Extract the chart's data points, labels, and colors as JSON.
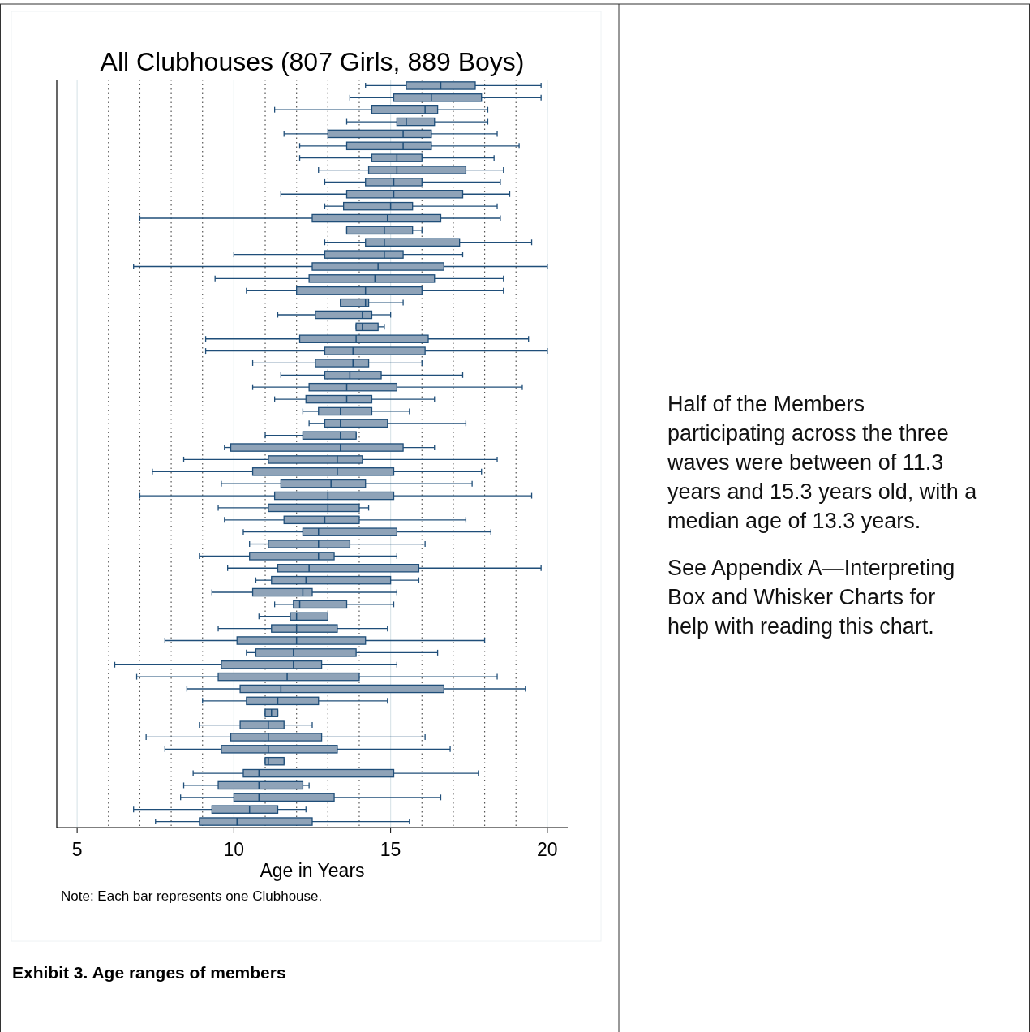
{
  "chart_data": {
    "type": "box",
    "orientation": "horizontal",
    "title": "All Clubhouses (807 Girls, 889 Boys)",
    "xlabel": "Age in Years",
    "annotations": [
      "Note: Each bar represents one Clubhouse.",
      "Exhibit 3. Age ranges of members",
      "Half of the Members participating across the three waves were between of 11.3 years and 15.3 years old, with a median age of 13.3 years.",
      "See Appendix A—Interpreting Box and Whisker Charts for help with reading this chart."
    ],
    "categories": [
      null,
      null,
      null,
      null,
      null,
      null,
      null,
      null,
      null,
      null,
      null,
      null,
      null,
      null,
      null,
      null,
      null,
      null,
      null,
      null,
      null,
      null,
      null,
      null,
      null,
      null,
      null,
      null,
      null,
      null,
      null,
      null,
      null,
      null,
      null,
      null,
      null,
      null,
      null,
      null,
      null,
      null,
      null,
      null,
      null,
      null,
      null,
      null,
      null,
      null,
      null,
      null,
      null,
      null,
      null,
      null,
      null,
      null,
      null,
      null,
      null,
      null
    ],
    "color": "#8fa3b8",
    "xlim": [
      4.35,
      20.65
    ],
    "xticks": [
      5,
      {
        "value": 6,
        "label": null
      },
      {
        "value": 7,
        "label": null
      },
      {
        "value": 8,
        "label": null
      },
      {
        "value": 9,
        "label": null
      },
      10,
      {
        "value": 11,
        "label": null
      },
      {
        "value": 12,
        "label": null
      },
      {
        "value": 13,
        "label": null
      },
      {
        "value": 14,
        "label": null
      },
      15,
      {
        "value": 16,
        "label": null
      },
      {
        "value": 17,
        "label": null
      },
      {
        "value": 18,
        "label": null
      },
      {
        "value": 19,
        "label": null
      },
      20
    ],
    "grid": "x",
    "boxes": [
      {
        "low": 14.2,
        "q1": 15.5,
        "median": 16.6,
        "q3": 17.7,
        "high": 19.8
      },
      {
        "low": 13.7,
        "q1": 15.1,
        "median": 16.3,
        "q3": 17.9,
        "high": 19.8
      },
      {
        "low": 11.3,
        "q1": 14.4,
        "median": 16.1,
        "q3": 16.5,
        "high": 18.1
      },
      {
        "low": 13.6,
        "q1": 15.2,
        "median": 15.5,
        "q3": 16.4,
        "high": 18.1
      },
      {
        "low": 11.6,
        "q1": 13.0,
        "median": 15.4,
        "q3": 16.3,
        "high": 18.4
      },
      {
        "low": 12.1,
        "q1": 13.6,
        "median": 15.4,
        "q3": 16.3,
        "high": 19.1
      },
      {
        "low": 12.1,
        "q1": 14.4,
        "median": 15.2,
        "q3": 16.0,
        "high": 18.3
      },
      {
        "low": 12.7,
        "q1": 14.3,
        "median": 15.2,
        "q3": 17.4,
        "high": 18.6
      },
      {
        "low": 12.9,
        "q1": 14.2,
        "median": 15.1,
        "q3": 16.0,
        "high": 18.5
      },
      {
        "low": 11.5,
        "q1": 13.6,
        "median": 15.1,
        "q3": 17.3,
        "high": 18.8
      },
      {
        "low": 12.9,
        "q1": 13.5,
        "median": 15.0,
        "q3": 15.7,
        "high": 18.4
      },
      {
        "low": 7.0,
        "q1": 12.5,
        "median": 14.9,
        "q3": 16.6,
        "high": 18.5
      },
      {
        "low": 13.6,
        "q1": 13.6,
        "median": 14.8,
        "q3": 15.7,
        "high": 16.0
      },
      {
        "low": 12.9,
        "q1": 14.2,
        "median": 14.8,
        "q3": 17.2,
        "high": 19.5
      },
      {
        "low": 10.0,
        "q1": 12.9,
        "median": 14.8,
        "q3": 15.4,
        "high": 17.3
      },
      {
        "low": 6.8,
        "q1": 12.5,
        "median": 14.6,
        "q3": 16.7,
        "high": 20.0
      },
      {
        "low": 9.4,
        "q1": 12.4,
        "median": 14.5,
        "q3": 16.4,
        "high": 18.6
      },
      {
        "low": 10.4,
        "q1": 12.0,
        "median": 14.2,
        "q3": 16.0,
        "high": 18.6
      },
      {
        "low": 13.4,
        "q1": 13.4,
        "median": 14.2,
        "q3": 14.3,
        "high": 15.4
      },
      {
        "low": 11.4,
        "q1": 12.6,
        "median": 14.1,
        "q3": 14.4,
        "high": 15.0
      },
      {
        "low": 13.9,
        "q1": 13.9,
        "median": 14.1,
        "q3": 14.6,
        "high": 14.8
      },
      {
        "low": 9.1,
        "q1": 12.1,
        "median": 13.9,
        "q3": 16.2,
        "high": 19.4
      },
      {
        "low": 9.1,
        "q1": 12.9,
        "median": 13.8,
        "q3": 16.1,
        "high": 20.0
      },
      {
        "low": 10.6,
        "q1": 12.6,
        "median": 13.8,
        "q3": 14.3,
        "high": 16.0
      },
      {
        "low": 11.5,
        "q1": 12.9,
        "median": 13.7,
        "q3": 14.7,
        "high": 17.3
      },
      {
        "low": 10.6,
        "q1": 12.4,
        "median": 13.6,
        "q3": 15.2,
        "high": 19.2
      },
      {
        "low": 11.3,
        "q1": 12.3,
        "median": 13.6,
        "q3": 14.4,
        "high": 16.4
      },
      {
        "low": 12.2,
        "q1": 12.7,
        "median": 13.4,
        "q3": 14.4,
        "high": 15.6
      },
      {
        "low": 12.4,
        "q1": 12.9,
        "median": 13.4,
        "q3": 14.9,
        "high": 17.4
      },
      {
        "low": 11.0,
        "q1": 12.2,
        "median": 13.4,
        "q3": 13.9,
        "high": 13.9
      },
      {
        "low": 9.7,
        "q1": 9.9,
        "median": 13.4,
        "q3": 15.4,
        "high": 16.4
      },
      {
        "low": 8.4,
        "q1": 11.1,
        "median": 13.3,
        "q3": 14.1,
        "high": 18.4
      },
      {
        "low": 7.4,
        "q1": 10.6,
        "median": 13.3,
        "q3": 15.1,
        "high": 17.9
      },
      {
        "low": 9.6,
        "q1": 11.5,
        "median": 13.1,
        "q3": 14.2,
        "high": 17.6
      },
      {
        "low": 7.0,
        "q1": 11.3,
        "median": 13.0,
        "q3": 15.1,
        "high": 19.5
      },
      {
        "low": 9.5,
        "q1": 11.1,
        "median": 13.0,
        "q3": 14.0,
        "high": 14.3
      },
      {
        "low": 9.7,
        "q1": 11.6,
        "median": 12.9,
        "q3": 14.0,
        "high": 17.4
      },
      {
        "low": 10.3,
        "q1": 12.2,
        "median": 12.7,
        "q3": 15.2,
        "high": 18.2
      },
      {
        "low": 10.5,
        "q1": 11.1,
        "median": 12.7,
        "q3": 13.7,
        "high": 16.1
      },
      {
        "low": 8.9,
        "q1": 10.5,
        "median": 12.7,
        "q3": 13.2,
        "high": 15.2
      },
      {
        "low": 9.8,
        "q1": 11.4,
        "median": 12.4,
        "q3": 15.9,
        "high": 19.8
      },
      {
        "low": 10.7,
        "q1": 11.2,
        "median": 12.3,
        "q3": 15.0,
        "high": 15.9
      },
      {
        "low": 9.3,
        "q1": 10.6,
        "median": 12.2,
        "q3": 12.5,
        "high": 15.2
      },
      {
        "low": 11.3,
        "q1": 11.9,
        "median": 12.1,
        "q3": 13.6,
        "high": 15.1
      },
      {
        "low": 10.8,
        "q1": 11.8,
        "median": 12.0,
        "q3": 13.0,
        "high": 13.0
      },
      {
        "low": 9.5,
        "q1": 11.2,
        "median": 12.0,
        "q3": 13.3,
        "high": 14.9
      },
      {
        "low": 7.8,
        "q1": 10.1,
        "median": 12.0,
        "q3": 14.2,
        "high": 18.0
      },
      {
        "low": 10.4,
        "q1": 10.7,
        "median": 11.9,
        "q3": 13.9,
        "high": 16.5
      },
      {
        "low": 6.2,
        "q1": 9.6,
        "median": 11.9,
        "q3": 12.8,
        "high": 15.2
      },
      {
        "low": 6.9,
        "q1": 9.5,
        "median": 11.7,
        "q3": 14.0,
        "high": 18.4
      },
      {
        "low": 8.5,
        "q1": 10.2,
        "median": 11.5,
        "q3": 16.7,
        "high": 19.3
      },
      {
        "low": 9.0,
        "q1": 10.4,
        "median": 11.4,
        "q3": 12.7,
        "high": 14.9
      },
      {
        "low": 11.0,
        "q1": 11.0,
        "median": 11.2,
        "q3": 11.4,
        "high": 11.4
      },
      {
        "low": 8.9,
        "q1": 10.2,
        "median": 11.1,
        "q3": 11.6,
        "high": 12.5
      },
      {
        "low": 7.2,
        "q1": 9.9,
        "median": 11.1,
        "q3": 12.8,
        "high": 16.1
      },
      {
        "low": 7.8,
        "q1": 9.6,
        "median": 11.1,
        "q3": 13.3,
        "high": 16.9
      },
      {
        "low": 11.0,
        "q1": 11.0,
        "median": 11.1,
        "q3": 11.6,
        "high": 11.6
      },
      {
        "low": 8.7,
        "q1": 10.3,
        "median": 10.8,
        "q3": 15.1,
        "high": 17.8
      },
      {
        "low": 8.4,
        "q1": 9.5,
        "median": 10.8,
        "q3": 12.2,
        "high": 12.4
      },
      {
        "low": 8.3,
        "q1": 10.0,
        "median": 10.8,
        "q3": 13.2,
        "high": 16.6
      },
      {
        "low": 6.8,
        "q1": 9.3,
        "median": 10.5,
        "q3": 11.4,
        "high": 12.3
      },
      {
        "low": 7.5,
        "q1": 8.9,
        "median": 10.1,
        "q3": 12.5,
        "high": 15.6
      }
    ]
  }
}
